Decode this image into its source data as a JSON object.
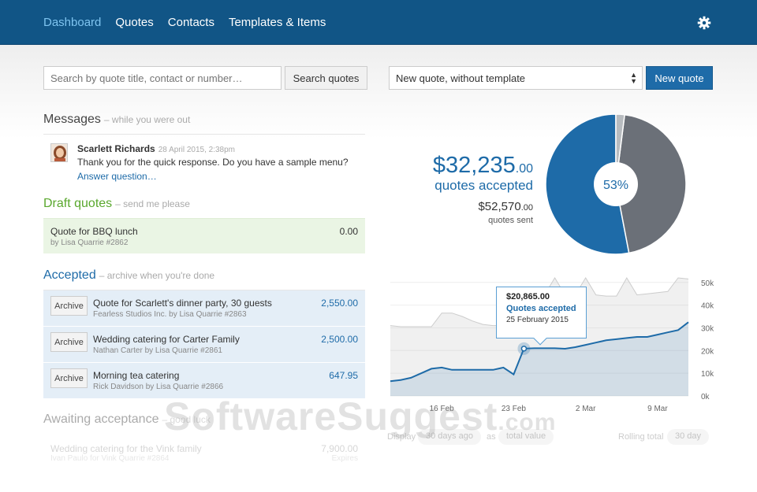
{
  "nav": {
    "items": [
      {
        "label": "Dashboard"
      },
      {
        "label": "Quotes"
      },
      {
        "label": "Contacts"
      },
      {
        "label": "Templates & Items"
      }
    ]
  },
  "search": {
    "placeholder": "Search by quote title, contact or number…",
    "button": "Search quotes"
  },
  "template_select": {
    "value": "New quote, without template"
  },
  "new_quote": {
    "label": "New quote"
  },
  "messages": {
    "title": "Messages",
    "subtitle": "– while you were out",
    "item": {
      "name": "Scarlett Richards",
      "time": "28 April 2015, 2:38pm",
      "text": "Thank you for the quick response. Do you have a sample menu?",
      "link": "Answer question…"
    }
  },
  "drafts": {
    "title": "Draft quotes",
    "subtitle": "– send me please",
    "items": [
      {
        "title": "Quote for BBQ lunch",
        "meta": "by Lisa Quarrie #2862",
        "amount": "0.00"
      }
    ]
  },
  "accepted": {
    "title": "Accepted",
    "subtitle": "– archive when you're done",
    "archive_label": "Archive",
    "items": [
      {
        "title": "Quote for Scarlett's dinner party, 30 guests",
        "meta": "Fearless Studios Inc. by Lisa Quarrie #2863",
        "amount": "2,550.00"
      },
      {
        "title": "Wedding catering for Carter Family",
        "meta": "Nathan Carter by Lisa Quarrie #2861",
        "amount": "2,500.00"
      },
      {
        "title": "Morning tea catering",
        "meta": "Rick Davidson by Lisa Quarrie #2866",
        "amount": "647.95"
      }
    ]
  },
  "awaiting": {
    "title": "Awaiting acceptance",
    "subtitle": "– good luck",
    "items": [
      {
        "title": "Wedding catering for the Vink family",
        "meta": "Ivan Paulo for Vink Quarrie #2864",
        "amount": "7,900.00",
        "status": "Expires"
      }
    ]
  },
  "summary": {
    "accepted_dollars": "$32,235",
    "accepted_cents": ".00",
    "accepted_label": "quotes accepted",
    "sent_dollars": "$52,570",
    "sent_cents": ".00",
    "sent_label": "quotes sent",
    "percent_label": "53%"
  },
  "tooltip": {
    "value": "$20,865.00",
    "label": "Quotes accepted",
    "date": "25 February 2015"
  },
  "controls": {
    "display_label": "Display",
    "period": "30 days ago",
    "as_label": "as",
    "mode": "total value",
    "rolling_label": "Rolling total",
    "rolling_value": "30 day"
  },
  "watermark": {
    "main": "SoftwareSuggest",
    "domain": ".com"
  },
  "colors": {
    "navbar": "#115586",
    "accent": "#1e6ba8",
    "active_nav": "#7fc4f0",
    "pie_grey": "#6b7078",
    "pie_light": "#b8bcc0"
  },
  "chart_data": [
    {
      "type": "pie",
      "slices": [
        {
          "label": "quotes accepted",
          "value": 53,
          "color": "#1e6ba8"
        },
        {
          "label": "other",
          "value": 45,
          "color": "#6b7078"
        },
        {
          "label": "other",
          "value": 2,
          "color": "#b8bcc0"
        }
      ],
      "center_label": "53%"
    },
    {
      "type": "area",
      "x_ticks": [
        "16 Feb",
        "23 Feb",
        "2 Mar",
        "9 Mar"
      ],
      "y_ticks": [
        "0k",
        "10k",
        "20k",
        "30k",
        "40k",
        "50k"
      ],
      "ylim": [
        0,
        52000
      ],
      "grid": true,
      "series": [
        {
          "name": "quotes sent",
          "color": "#cccccc",
          "values": [
            31000,
            30500,
            30500,
            30500,
            30500,
            36500,
            36500,
            35000,
            33000,
            31500,
            31000,
            31000,
            31000,
            31000,
            33500,
            44500,
            52000,
            44500,
            44500,
            52000,
            44500,
            44000,
            44000,
            52000,
            44500,
            45000,
            45500,
            46000,
            52000,
            51500
          ]
        },
        {
          "name": "Quotes accepted",
          "color": "#1e6ba8",
          "values": [
            6500,
            7000,
            8000,
            10000,
            12000,
            12500,
            11500,
            11500,
            11500,
            11500,
            11500,
            12500,
            9500,
            20865,
            21000,
            21000,
            21000,
            20800,
            21500,
            22500,
            23500,
            24500,
            25000,
            25500,
            26000,
            26000,
            27000,
            28000,
            29000,
            32500
          ]
        }
      ]
    }
  ]
}
